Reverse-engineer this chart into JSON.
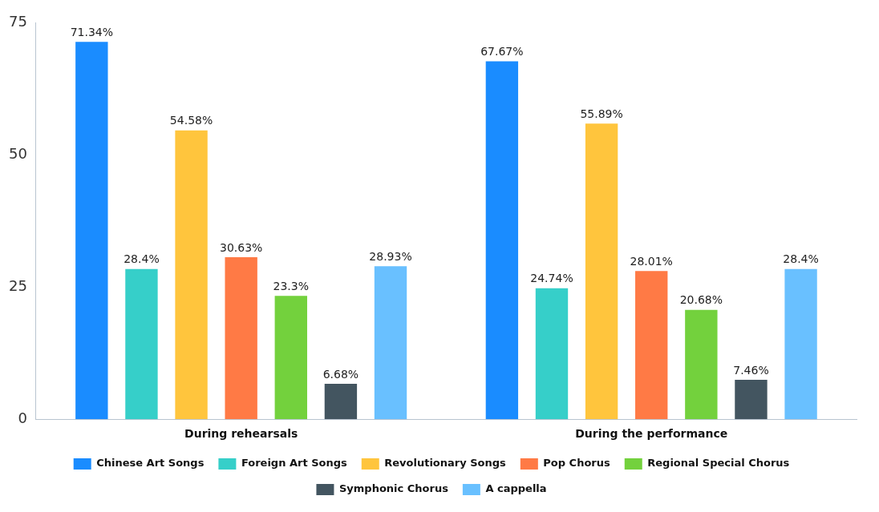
{
  "chart_data": {
    "type": "bar",
    "categories": [
      "During rehearsals",
      "During the performance"
    ],
    "series": [
      {
        "name": "Chinese Art Songs",
        "color": "#1a8cff",
        "values": [
          71.34,
          67.67
        ],
        "value_labels": [
          "71.34%",
          "67.67%"
        ]
      },
      {
        "name": "Foreign Art Songs",
        "color": "#36cfc9",
        "values": [
          28.4,
          24.74
        ],
        "value_labels": [
          "28.4%",
          "24.74%"
        ]
      },
      {
        "name": "Revolutionary Songs",
        "color": "#ffc53d",
        "values": [
          54.58,
          55.89
        ],
        "value_labels": [
          "54.58%",
          "55.89%"
        ]
      },
      {
        "name": "Pop Chorus",
        "color": "#ff7a45",
        "values": [
          30.63,
          28.01
        ],
        "value_labels": [
          "30.63%",
          "28.01%"
        ]
      },
      {
        "name": "Regional Special Chorus",
        "color": "#73d13d",
        "values": [
          23.3,
          20.68
        ],
        "value_labels": [
          "23.3%",
          "20.68%"
        ]
      },
      {
        "name": "Symphonic Chorus",
        "color": "#435560",
        "values": [
          6.68,
          7.46
        ],
        "value_labels": [
          "6.68%",
          "7.46%"
        ]
      },
      {
        "name": "A cappella",
        "color": "#69c0ff",
        "values": [
          28.93,
          28.4
        ],
        "value_labels": [
          "28.93%",
          "28.4%"
        ]
      }
    ],
    "ylim": [
      0,
      75
    ],
    "yticks": [
      0,
      25,
      50,
      75
    ],
    "grid": false,
    "legend": "bottom"
  }
}
